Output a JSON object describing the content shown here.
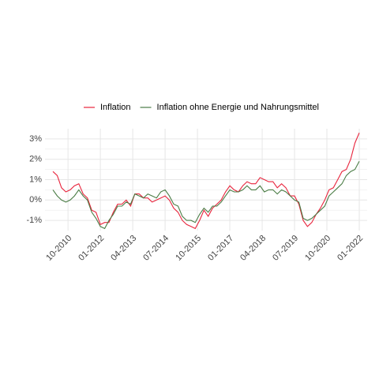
{
  "chart_data": {
    "type": "line",
    "x": [
      "03-2010",
      "05-2010",
      "07-2010",
      "09-2010",
      "11-2010",
      "01-2011",
      "03-2011",
      "05-2011",
      "07-2011",
      "09-2011",
      "11-2011",
      "01-2012",
      "03-2012",
      "05-2012",
      "07-2012",
      "09-2012",
      "11-2012",
      "01-2013",
      "03-2013",
      "05-2013",
      "07-2013",
      "09-2013",
      "11-2013",
      "01-2014",
      "03-2014",
      "05-2014",
      "07-2014",
      "09-2014",
      "11-2014",
      "01-2015",
      "03-2015",
      "05-2015",
      "07-2015",
      "09-2015",
      "11-2015",
      "01-2016",
      "03-2016",
      "05-2016",
      "07-2016",
      "09-2016",
      "11-2016",
      "01-2017",
      "03-2017",
      "05-2017",
      "07-2017",
      "09-2017",
      "11-2017",
      "01-2018",
      "03-2018",
      "05-2018",
      "07-2018",
      "09-2018",
      "11-2018",
      "01-2019",
      "03-2019",
      "05-2019",
      "07-2019",
      "09-2019",
      "11-2019",
      "01-2020",
      "03-2020",
      "05-2020",
      "07-2020",
      "09-2020",
      "11-2020",
      "01-2021",
      "03-2021",
      "05-2021",
      "07-2021",
      "09-2021",
      "11-2021",
      "01-2022"
    ],
    "series": [
      {
        "name": "Inflation",
        "color": "#e8243c",
        "values": [
          1.4,
          1.2,
          0.6,
          0.4,
          0.5,
          0.7,
          0.8,
          0.3,
          0.1,
          -0.5,
          -0.6,
          -1.2,
          -1.1,
          -1.1,
          -0.6,
          -0.2,
          -0.2,
          0.0,
          -0.3,
          0.3,
          0.3,
          0.1,
          0.1,
          -0.1,
          0.0,
          0.1,
          0.2,
          0.0,
          -0.4,
          -0.6,
          -1.0,
          -1.2,
          -1.3,
          -1.4,
          -1.0,
          -0.5,
          -0.8,
          -0.4,
          -0.2,
          0.0,
          0.4,
          0.7,
          0.5,
          0.4,
          0.7,
          0.9,
          0.8,
          0.8,
          1.1,
          1.0,
          0.9,
          0.9,
          0.6,
          0.8,
          0.6,
          0.2,
          0.2,
          -0.2,
          -1.0,
          -1.3,
          -1.1,
          -0.7,
          -0.4,
          0.0,
          0.5,
          0.6,
          1.0,
          1.4,
          1.5,
          2.0,
          2.8,
          3.3
        ]
      },
      {
        "name": "Inflation ohne Energie und Nahrungsmittel",
        "color": "#4a7c45",
        "values": [
          0.5,
          0.2,
          0.0,
          -0.1,
          0.0,
          0.2,
          0.5,
          0.2,
          0.0,
          -0.6,
          -0.9,
          -1.3,
          -1.4,
          -1.0,
          -0.7,
          -0.3,
          -0.3,
          -0.1,
          -0.2,
          0.3,
          0.2,
          0.1,
          0.3,
          0.2,
          0.1,
          0.4,
          0.5,
          0.2,
          -0.2,
          -0.3,
          -0.8,
          -1.0,
          -1.0,
          -1.1,
          -0.7,
          -0.4,
          -0.6,
          -0.3,
          -0.3,
          -0.1,
          0.2,
          0.5,
          0.4,
          0.4,
          0.5,
          0.7,
          0.5,
          0.5,
          0.7,
          0.4,
          0.5,
          0.5,
          0.3,
          0.5,
          0.4,
          0.2,
          0.0,
          -0.1,
          -0.9,
          -1.0,
          -0.9,
          -0.7,
          -0.5,
          -0.3,
          0.2,
          0.4,
          0.6,
          0.8,
          1.2,
          1.4,
          1.5,
          1.9
        ]
      }
    ],
    "xticks": [
      "10-2010",
      "01-2012",
      "04-2013",
      "07-2014",
      "10-2015",
      "01-2017",
      "04-2018",
      "07-2019",
      "10-2020",
      "01-2022"
    ],
    "ylim": [
      -1.5,
      3.5
    ],
    "yticks": [
      {
        "value": -1,
        "label": "-1%"
      },
      {
        "value": 0,
        "label": "0%"
      },
      {
        "value": 1,
        "label": "1%"
      },
      {
        "value": 2,
        "label": "2%"
      },
      {
        "value": 3,
        "label": "3%"
      }
    ],
    "grid": true,
    "legend": "top"
  }
}
